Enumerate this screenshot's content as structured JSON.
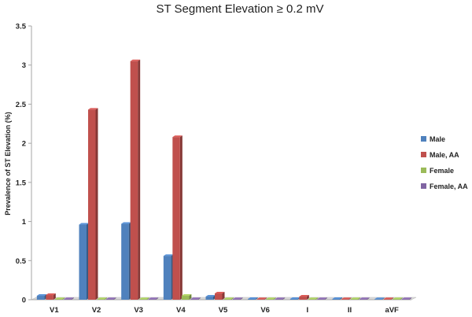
{
  "chart_data": {
    "type": "bar",
    "title": "ST Segment Elevation ≥ 0.2 mV",
    "ylabel": "Prevalence of ST Elevation (%)",
    "xlabel": "",
    "categories": [
      "V1",
      "V2",
      "V3",
      "V4",
      "V5",
      "V6",
      "I",
      "II",
      "aVF"
    ],
    "ylim": [
      0,
      3.5
    ],
    "yticks": [
      "0",
      "0.5",
      "1",
      "1.5",
      "2",
      "2.5",
      "3",
      "3.5"
    ],
    "grid": false,
    "legend_position": "right",
    "series": [
      {
        "name": "Male",
        "color": "#4f81bd",
        "values": [
          0.05,
          0.96,
          0.97,
          0.56,
          0.04,
          0.01,
          0.01,
          0.01,
          0.0
        ]
      },
      {
        "name": "Male, AA",
        "color": "#c0504d",
        "values": [
          0.06,
          2.43,
          3.05,
          2.08,
          0.08,
          0.0,
          0.04,
          0.0,
          0.0
        ]
      },
      {
        "name": "Female",
        "color": "#9bbb59",
        "values": [
          0.0,
          0.0,
          0.0,
          0.05,
          0.0,
          0.0,
          0.0,
          0.0,
          0.0
        ]
      },
      {
        "name": "Female, AA",
        "color": "#8064a2",
        "values": [
          0.0,
          0.0,
          0.0,
          0.0,
          0.0,
          0.0,
          0.0,
          0.0,
          0.0
        ]
      }
    ]
  }
}
